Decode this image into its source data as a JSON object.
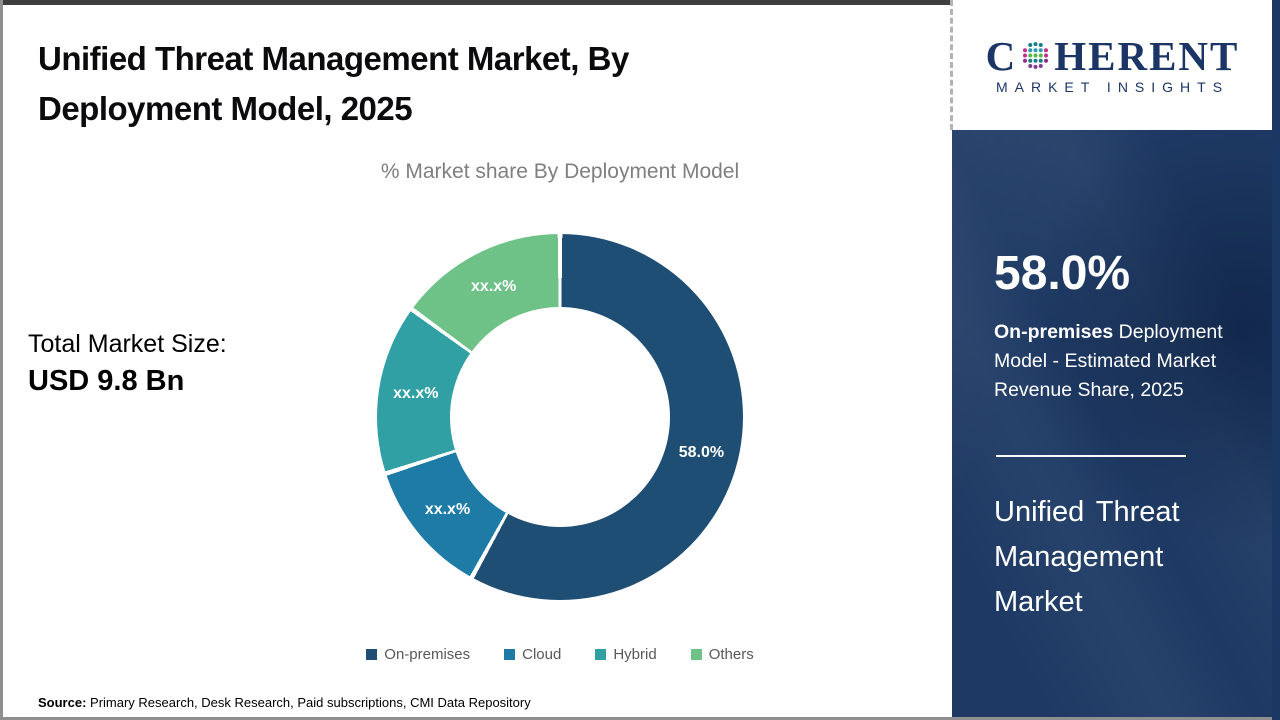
{
  "header": {
    "title": "Unified Threat Management Market, By Deployment Model, 2025"
  },
  "total_market": {
    "label": "Total Market Size:",
    "value": "USD 9.8 Bn"
  },
  "chart_data": {
    "type": "pie",
    "subtype": "donut",
    "title": "% Market share By Deployment Model",
    "categories": [
      "On-premises",
      "Cloud",
      "Hybrid",
      "Others"
    ],
    "values": [
      58.0,
      12.0,
      15.0,
      15.0
    ],
    "labels": [
      "58.0%",
      "xx.x%",
      "xx.x%",
      "xx.x%"
    ],
    "colors": [
      "#1F4E74",
      "#1E7BA6",
      "#31A0A5",
      "#6FC287"
    ],
    "legend_position": "bottom",
    "start_angle_deg": 0,
    "note_on_values": "Only the On-premises share (58.0%) is disclosed; Cloud, Hybrid and Others slices are masked as xx.x% and their values are estimated from arc angles."
  },
  "source": {
    "label": "Source:",
    "text": " Primary Research, Desk Research, Paid subscriptions, CMI Data Repository"
  },
  "sidebar": {
    "logo": {
      "word_start": "C",
      "word_end": "HERENT",
      "subtext": "MARKET INSIGHTS",
      "brand_navy": "#1b3666",
      "globe_dot_colors": [
        "#177E89",
        "#2B9EB3",
        "#56B947",
        "#C22E8E",
        "#7C3D8F"
      ]
    },
    "stat_value": "58.0%",
    "stat_bold": "On-premises",
    "stat_rest": " Deployment Model - Estimated Market Revenue Share, 2025",
    "market_name": "Unified Threat Management Market",
    "panel_color": "#1e3a64"
  }
}
